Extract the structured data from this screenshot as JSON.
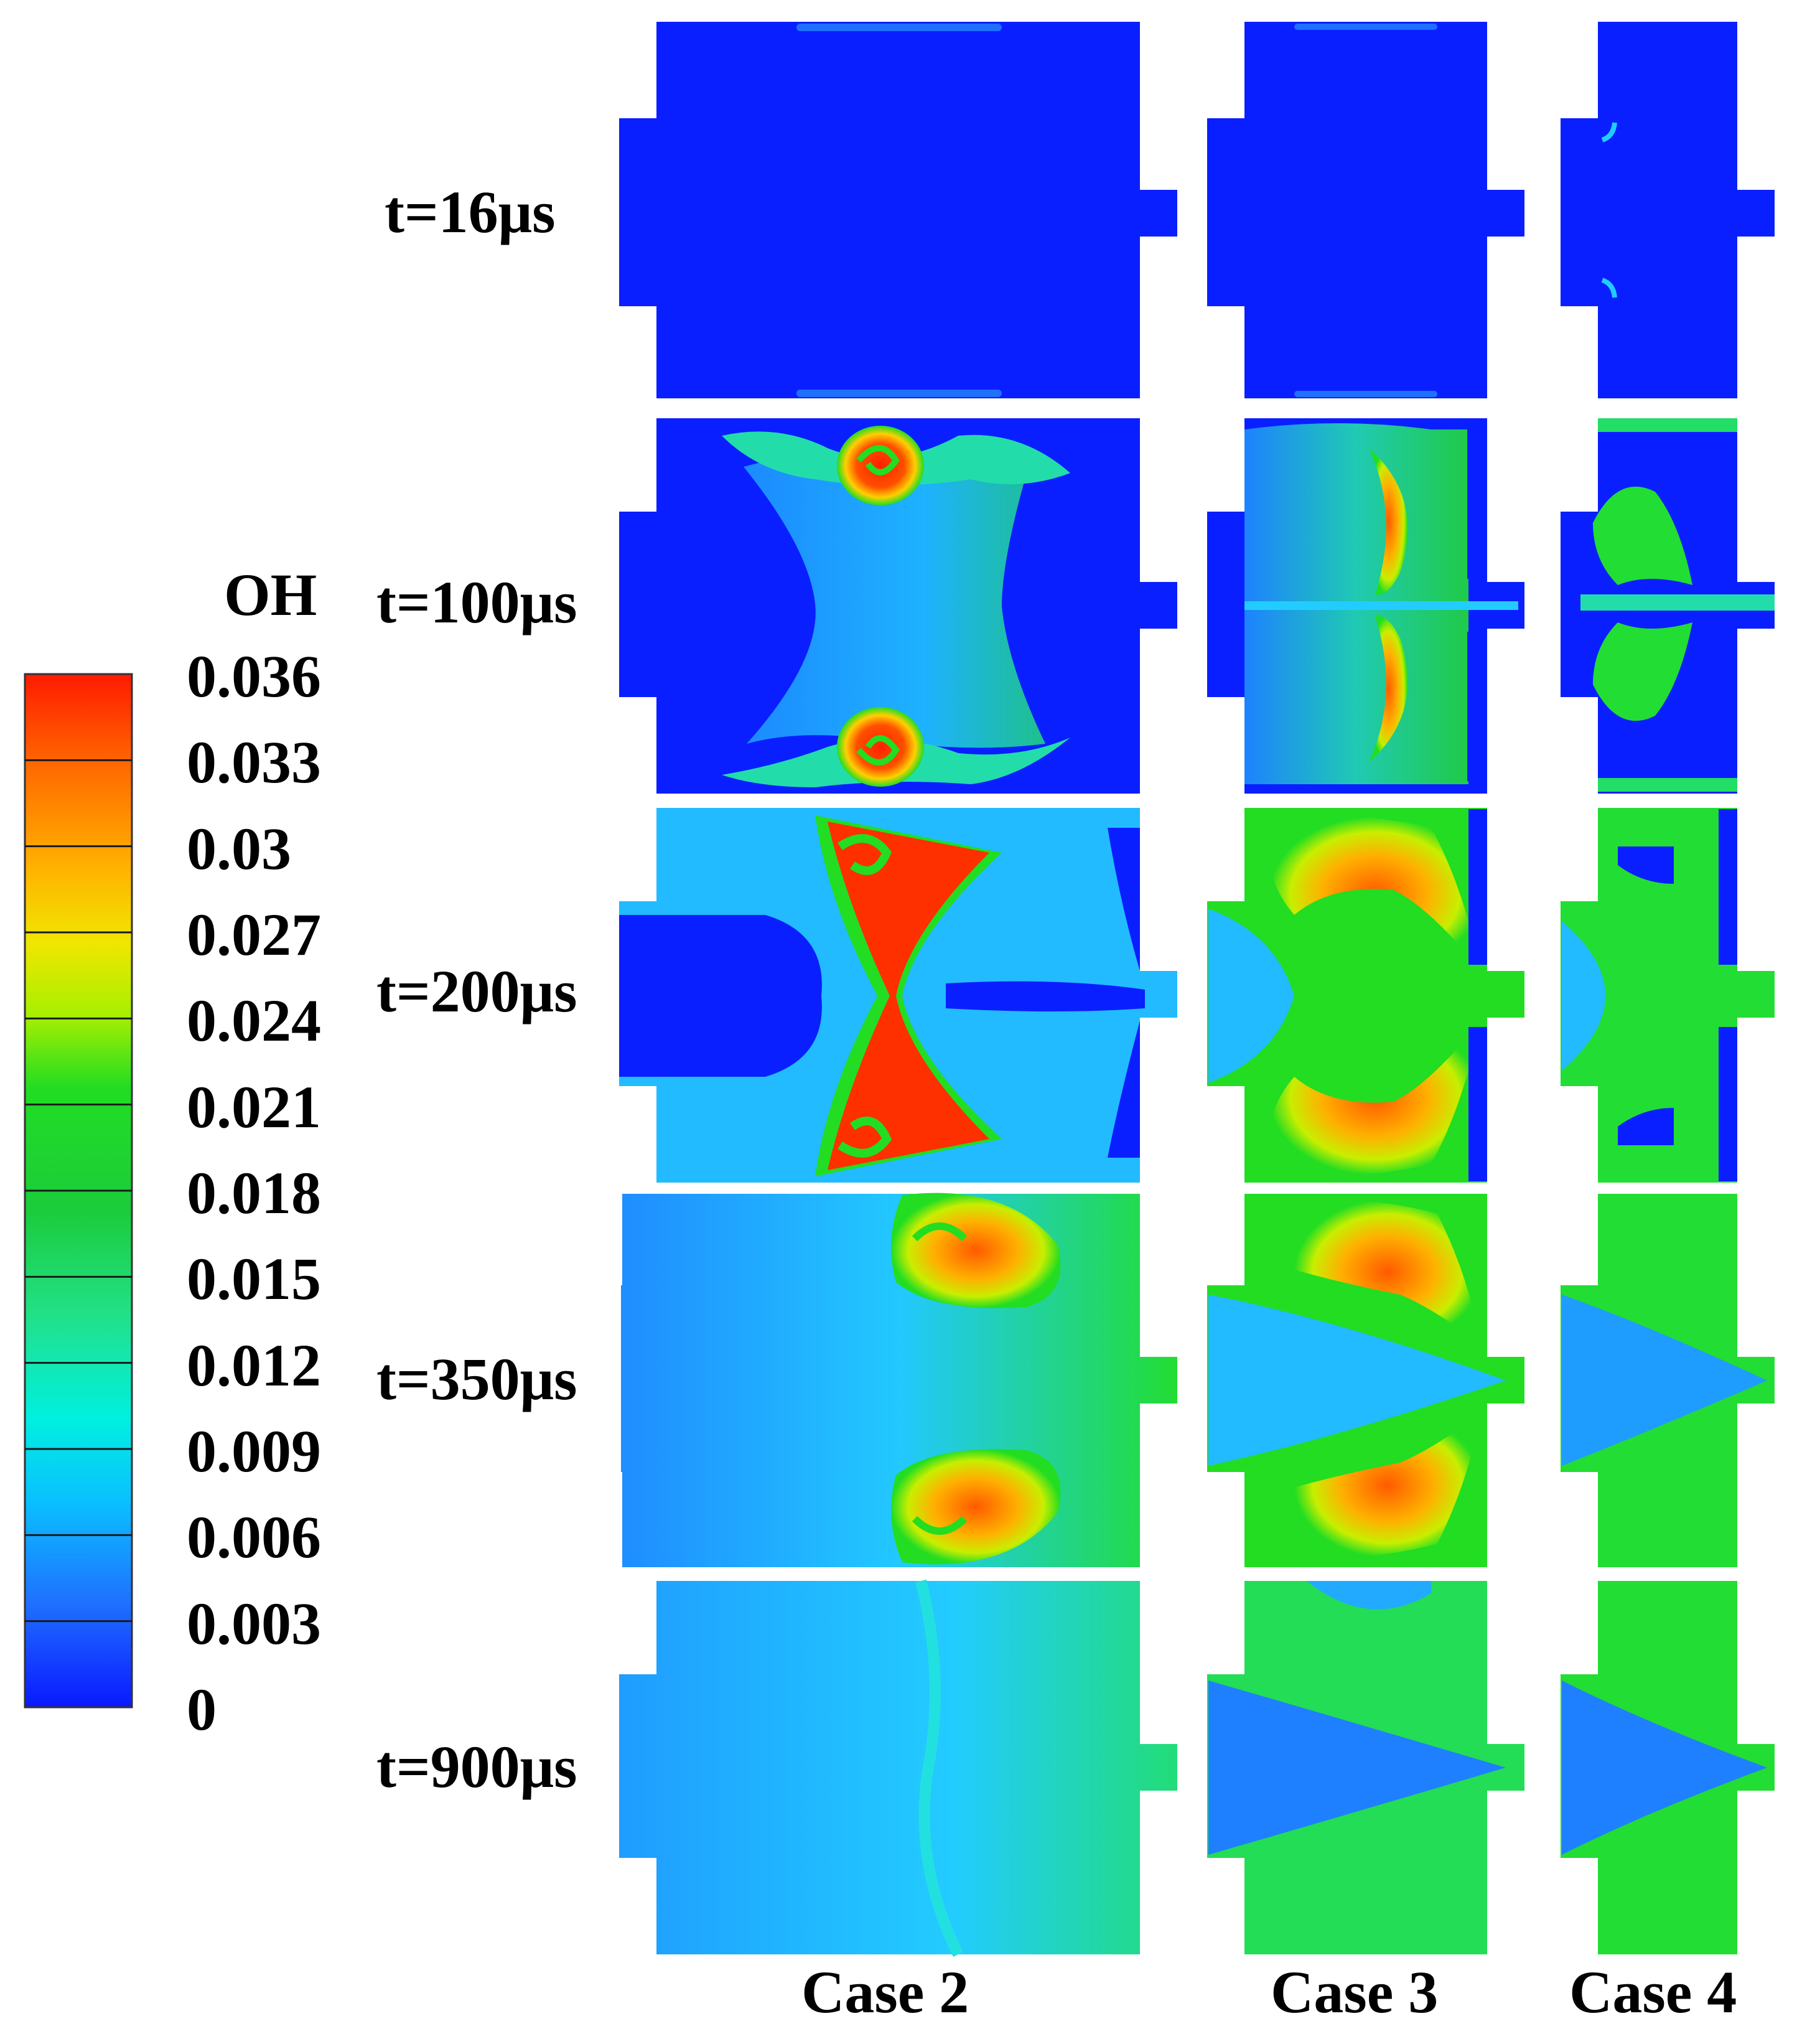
{
  "legend": {
    "title": "OH",
    "ticks": [
      "0.036",
      "0.033",
      "0.03",
      "0.027",
      "0.024",
      "0.021",
      "0.018",
      "0.015",
      "0.012",
      "0.009",
      "0.006",
      "0.003",
      "0"
    ],
    "stops": [
      "#ff2000",
      "#ff6a00",
      "#ffa500",
      "#ffd500",
      "#d8f000",
      "#22dd22",
      "#19cc19",
      "#19c83c",
      "#22dd88",
      "#00f0dd",
      "#0ab5ff",
      "#1f70ff",
      "#0a1fff"
    ]
  },
  "times": [
    "t=16μs",
    "t=100μs",
    "t=200μs",
    "t=350μs",
    "t=900μs"
  ],
  "cases": [
    "Case 2",
    "Case 3",
    "Case 4"
  ],
  "colors": {
    "background_field": "#0a1fff",
    "cyan_field": "#22ccff",
    "green_field": "#22dd22",
    "hot_field": "#ff3000"
  }
}
